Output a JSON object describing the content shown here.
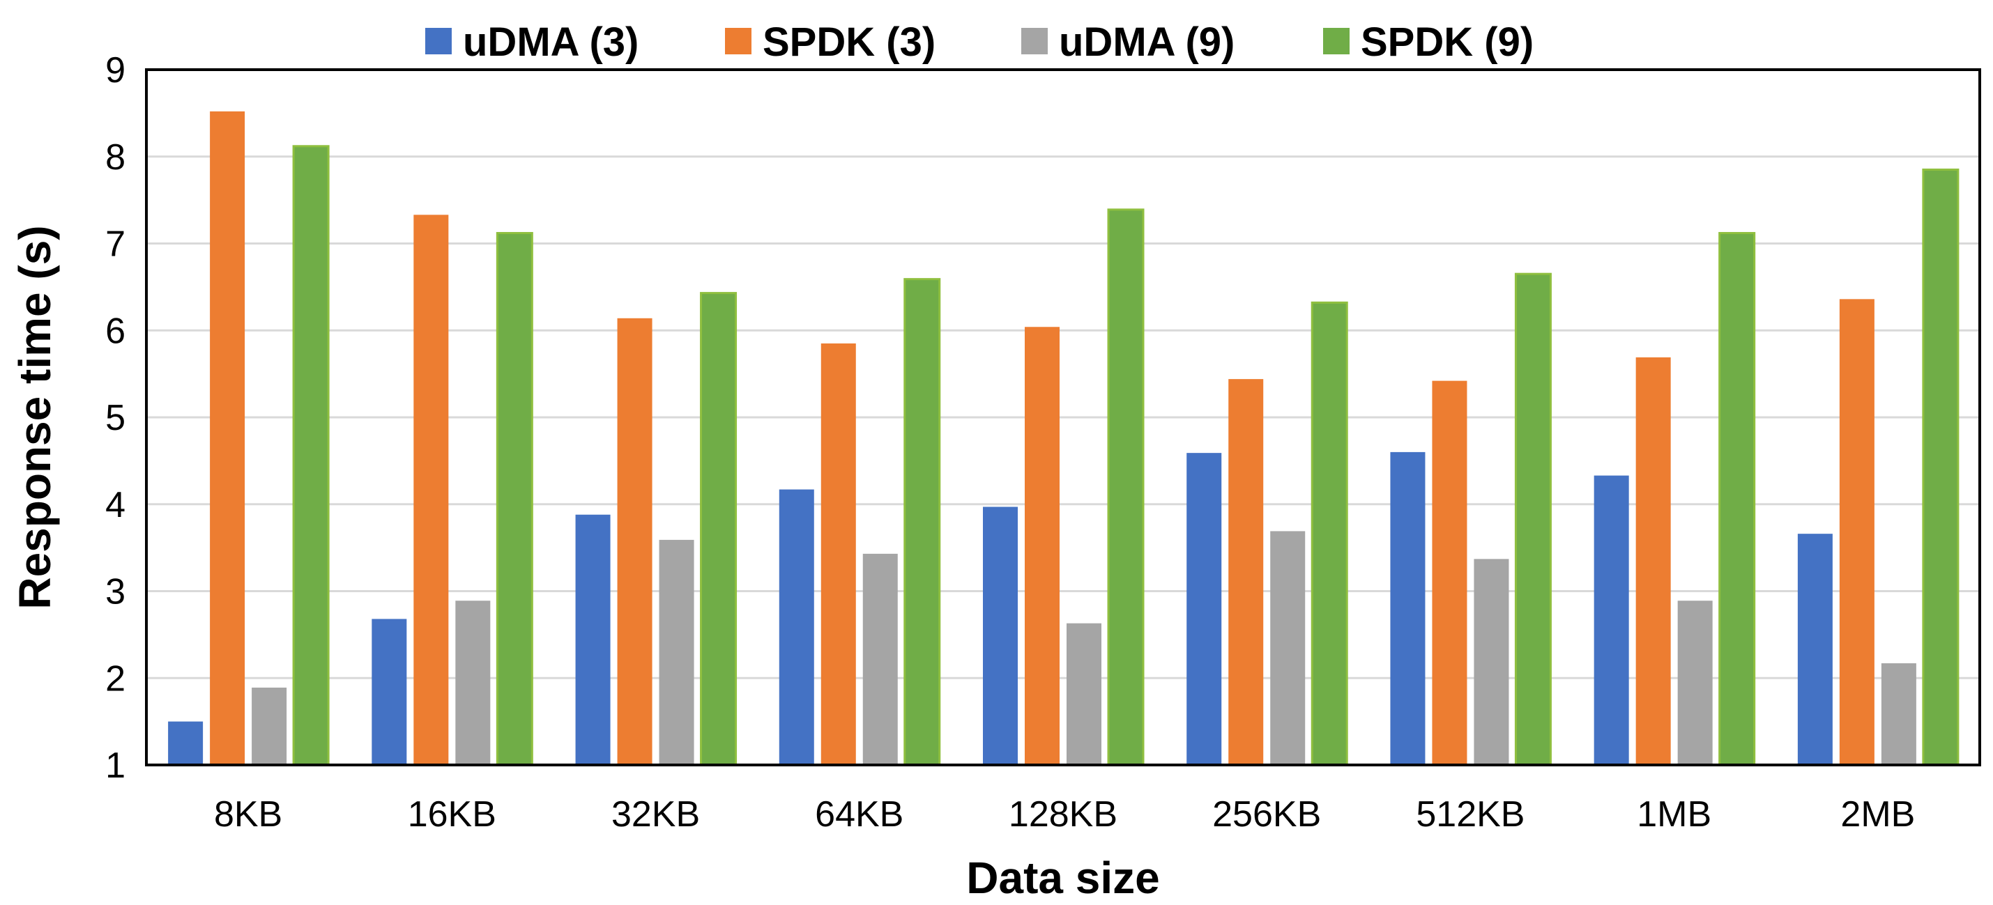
{
  "chart_data": {
    "type": "bar",
    "title": "",
    "xlabel": "Data size",
    "ylabel": "Response time (s)",
    "ylim": [
      1,
      9
    ],
    "yticks": [
      1,
      2,
      3,
      4,
      5,
      6,
      7,
      8,
      9
    ],
    "grid": true,
    "legend_position": "top",
    "categories": [
      "8KB",
      "16KB",
      "32KB",
      "64KB",
      "128KB",
      "256KB",
      "512KB",
      "1MB",
      "2MB"
    ],
    "series": [
      {
        "name": "uDMA (3)",
        "color": "#4472c4",
        "values": [
          1.5,
          2.68,
          3.88,
          4.17,
          3.97,
          4.59,
          4.6,
          4.33,
          3.66
        ]
      },
      {
        "name": "SPDK (3)",
        "color": "#ed7d31",
        "values": [
          8.52,
          7.33,
          6.14,
          5.85,
          6.04,
          5.44,
          5.42,
          5.69,
          6.36
        ]
      },
      {
        "name": "uDMA (9)",
        "color": "#a5a5a5",
        "values": [
          1.89,
          2.89,
          3.59,
          3.43,
          2.63,
          3.69,
          3.37,
          2.89,
          2.17
        ]
      },
      {
        "name": "SPDK (9)",
        "color": "#70ad47",
        "values": [
          8.12,
          7.12,
          6.43,
          6.59,
          7.39,
          6.32,
          6.65,
          7.12,
          7.85
        ]
      }
    ]
  }
}
